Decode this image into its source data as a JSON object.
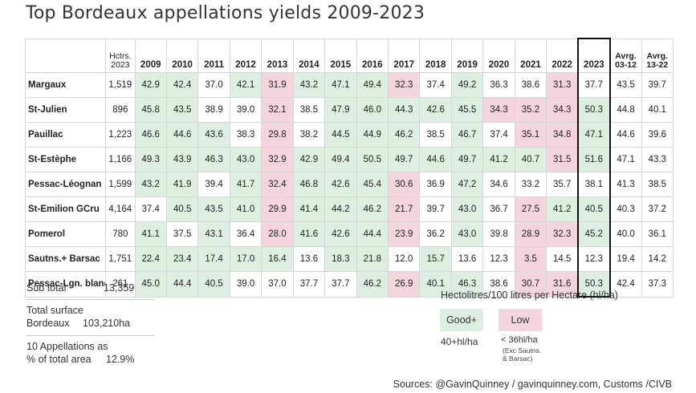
{
  "title": "Top Bordeaux appellations yields 2009-2023",
  "chart_data": {
    "type": "table",
    "title": "Top Bordeaux appellations yields 2009-2023",
    "columns": {
      "name": "",
      "hectares": [
        "Hctrs.",
        "2023"
      ],
      "years": [
        "2009",
        "2010",
        "2011",
        "2012",
        "2013",
        "2014",
        "2015",
        "2016",
        "2017",
        "2018",
        "2019",
        "2020",
        "2021",
        "2022",
        "2023"
      ],
      "avg1": [
        "Avrg.",
        "03-12"
      ],
      "avg2": [
        "Avrg.",
        "13-22"
      ]
    },
    "rows": [
      {
        "name": "Margaux",
        "hectares": "1,519",
        "values": [
          "42.9",
          "42.4",
          "37.0",
          "42.1",
          "31.9",
          "43.2",
          "47.1",
          "49.4",
          "32.3",
          "37.4",
          "49.2",
          "36.3",
          "38.6",
          "31.3",
          "37.7"
        ],
        "avg1": "43.5",
        "avg2": "39.7",
        "shade": [
          "g",
          "g",
          "",
          "g",
          "l",
          "g",
          "g",
          "g",
          "l",
          "",
          "g",
          "",
          "",
          "l",
          ""
        ]
      },
      {
        "name": "St-Julien",
        "hectares": "896",
        "values": [
          "45.8",
          "43.5",
          "38.9",
          "39.0",
          "32.1",
          "38.5",
          "47.9",
          "46.0",
          "44.3",
          "42.6",
          "45.5",
          "34.3",
          "35.2",
          "34.3",
          "50.3"
        ],
        "avg1": "44.8",
        "avg2": "40.1",
        "shade": [
          "g",
          "g",
          "",
          "",
          "l",
          "",
          "g",
          "g",
          "g",
          "g",
          "g",
          "l",
          "l",
          "l",
          "g"
        ]
      },
      {
        "name": "Pauillac",
        "hectares": "1,223",
        "values": [
          "46.6",
          "44.6",
          "43.6",
          "38.3",
          "29.8",
          "38.2",
          "44.5",
          "44.9",
          "46.2",
          "38.5",
          "46.7",
          "37.4",
          "35.1",
          "34.8",
          "47.1"
        ],
        "avg1": "44.6",
        "avg2": "39.6",
        "shade": [
          "g",
          "g",
          "g",
          "",
          "l",
          "",
          "g",
          "g",
          "g",
          "",
          "g",
          "",
          "l",
          "l",
          "g"
        ]
      },
      {
        "name": "St-Estèphe",
        "hectares": "1,166",
        "values": [
          "49.3",
          "43.9",
          "46.3",
          "43.0",
          "32.9",
          "42.9",
          "49.4",
          "50.5",
          "49.7",
          "44.6",
          "49.7",
          "41.2",
          "40.7",
          "31.5",
          "51.6"
        ],
        "avg1": "47.1",
        "avg2": "43.3",
        "shade": [
          "g",
          "g",
          "g",
          "g",
          "l",
          "g",
          "g",
          "g",
          "g",
          "g",
          "g",
          "g",
          "g",
          "l",
          "g"
        ]
      },
      {
        "name": "Pessac-Léognan",
        "hectares": "1,599",
        "values": [
          "43.2",
          "41.9",
          "39.4",
          "41.7",
          "32.4",
          "46.8",
          "42.6",
          "45.4",
          "30.6",
          "36.9",
          "47.2",
          "34.6",
          "33.2",
          "35.7",
          "38.1"
        ],
        "avg1": "41.3",
        "avg2": "38.5",
        "shade": [
          "g",
          "g",
          "",
          "g",
          "l",
          "g",
          "g",
          "g",
          "l",
          "",
          "g",
          "",
          "",
          "",
          ""
        ]
      },
      {
        "name": "St-Emilion GCru",
        "hectares": "4,164",
        "values": [
          "37.4",
          "40.5",
          "43.5",
          "41.0",
          "29.9",
          "41.4",
          "44.2",
          "46.2",
          "21.7",
          "39.7",
          "43.0",
          "36.7",
          "27.5",
          "41.2",
          "40.5"
        ],
        "avg1": "40.3",
        "avg2": "37.2",
        "shade": [
          "",
          "g",
          "g",
          "g",
          "l",
          "g",
          "g",
          "g",
          "l",
          "",
          "g",
          "",
          "l",
          "g",
          "g"
        ]
      },
      {
        "name": "Pomerol",
        "hectares": "780",
        "values": [
          "41.1",
          "37.5",
          "43.1",
          "36.4",
          "28.0",
          "41.6",
          "42.6",
          "44.4",
          "23.9",
          "36.2",
          "43.0",
          "39.8",
          "28.9",
          "32.3",
          "45.2"
        ],
        "avg1": "40.0",
        "avg2": "36.1",
        "shade": [
          "g",
          "",
          "g",
          "",
          "l",
          "g",
          "g",
          "g",
          "l",
          "",
          "g",
          "",
          "l",
          "l",
          "g"
        ]
      },
      {
        "name": "Sautns.+ Barsac",
        "hectares": "1,751",
        "values": [
          "22.4",
          "23.4",
          "17.4",
          "17.0",
          "16.4",
          "13.6",
          "18.3",
          "21.8",
          "12.0",
          "15.7",
          "13.6",
          "12.3",
          "3.5",
          "14.5",
          "12.3"
        ],
        "avg1": "19.4",
        "avg2": "14.2",
        "shade": [
          "g",
          "g",
          "g",
          "g",
          "g",
          "",
          "g",
          "g",
          "",
          "g",
          "",
          "",
          "l",
          "",
          ""
        ]
      },
      {
        "name": "Pessac-Lgn. blanc",
        "hectares": "261",
        "values": [
          "45.0",
          "44.4",
          "40.5",
          "39.0",
          "37.0",
          "37.7",
          "37.7",
          "46.2",
          "26.9",
          "40.1",
          "46.3",
          "38.6",
          "30.7",
          "31.6",
          "50.3"
        ],
        "avg1": "42.4",
        "avg2": "37.3",
        "shade": [
          "g",
          "g",
          "g",
          "",
          "",
          "",
          "",
          "g",
          "l",
          "g",
          "g",
          "",
          "l",
          "l",
          "g"
        ]
      }
    ],
    "highlight_column": "2023",
    "colors": {
      "good": "#dcefe1",
      "low": "#f5d5dd",
      "highlight_border": "#111111"
    }
  },
  "summary": {
    "subtotal_label": "Sub total",
    "subtotal_value": "13,359",
    "surface_label_1": "Total surface",
    "surface_label_2": "Bordeaux",
    "surface_value": "103,210ha",
    "pct_label_1": "10 Appellations as",
    "pct_label_2": "% of total area",
    "pct_value": "12.9%"
  },
  "legend": {
    "title": "Hectolitres/100 litres per Hectare (hl/ha)",
    "good_label": "Good+",
    "good_note": "40+hl/ha",
    "low_label": "Low",
    "low_note": "< 36hl/ha",
    "low_sub_1": "(Exc Sautns.",
    "low_sub_2": "& Barsac)"
  },
  "sources": "Sources: @GavinQuinney / gavinquinney.com, Customs /CIVB"
}
